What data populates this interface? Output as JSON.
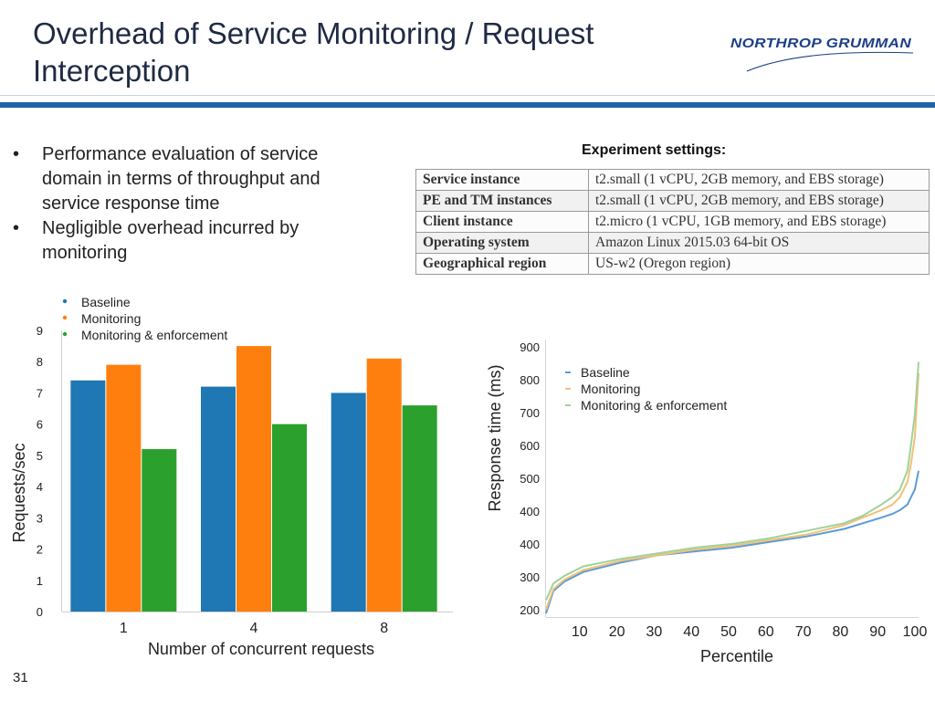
{
  "slide": {
    "title_line1": "Overhead of Service Monitoring / Request",
    "title_line2": "Interception",
    "logo_text": "NORTHROP GRUMMAN",
    "bullets": [
      "Performance evaluation of service domain in terms of throughput and service response time",
      "Negligible overhead incurred by monitoring"
    ],
    "bullet_char": "•",
    "page_number": "31",
    "accent_color": "#1c63a8"
  },
  "experiment": {
    "title": "Experiment settings:",
    "rows": [
      {
        "key": "Service instance",
        "value": "t2.small (1 vCPU, 2GB memory, and EBS storage)"
      },
      {
        "key": "PE and TM instances",
        "value": "t2.small (1 vCPU, 2GB memory, and EBS storage)"
      },
      {
        "key": "Client instance",
        "value": "t2.micro (1 vCPU, 1GB memory, and EBS storage)"
      },
      {
        "key": "Operating system",
        "value": "Amazon Linux 2015.03 64-bit OS"
      },
      {
        "key": "Geographical region",
        "value": "US-w2 (Oregon region)"
      }
    ]
  },
  "chart_data": [
    {
      "type": "bar",
      "categories": [
        "1",
        "4",
        "8"
      ],
      "series": [
        {
          "name": "Baseline",
          "values": [
            7.4,
            7.2,
            7.0
          ],
          "color": "#1f77b4"
        },
        {
          "name": "Monitoring",
          "values": [
            7.9,
            8.5,
            8.1
          ],
          "color": "#ff7f0e"
        },
        {
          "name": "Monitoring & enforcement",
          "values": [
            5.2,
            6.0,
            6.6
          ],
          "color": "#2ca02c"
        }
      ],
      "xlabel": "Number of concurrent requests",
      "ylabel": "Requests/sec",
      "ylim": [
        0,
        9
      ],
      "yticks": [
        "0",
        "1",
        "2",
        "3",
        "4",
        "5",
        "6",
        "7",
        "8",
        "9"
      ],
      "legend": "top-left"
    },
    {
      "type": "line",
      "x": [
        0,
        2,
        5,
        10,
        20,
        30,
        40,
        50,
        60,
        70,
        80,
        85,
        90,
        93,
        95,
        97,
        98,
        99,
        100
      ],
      "series": [
        {
          "name": "Baseline",
          "color": "#5b9bd5",
          "values": [
            190,
            250,
            275,
            300,
            325,
            345,
            355,
            365,
            380,
            395,
            415,
            430,
            445,
            455,
            465,
            480,
            500,
            520,
            570
          ]
        },
        {
          "name": "Monitoring",
          "color": "#f2c078",
          "values": [
            200,
            255,
            280,
            305,
            330,
            345,
            360,
            370,
            385,
            400,
            425,
            445,
            465,
            480,
            500,
            540,
            590,
            660,
            830
          ]
        },
        {
          "name": "Monitoring & enforcement",
          "color": "#9fd29a",
          "values": [
            225,
            270,
            290,
            315,
            335,
            350,
            365,
            375,
            390,
            410,
            430,
            450,
            480,
            500,
            520,
            570,
            640,
            720,
            860
          ]
        }
      ],
      "xlabel": "Percentile",
      "ylabel": "Response time (ms)",
      "xticks": [
        "10",
        "20",
        "30",
        "40",
        "50",
        "60",
        "70",
        "80",
        "90",
        "100"
      ],
      "yticks": [
        "200",
        "300",
        "400",
        "400",
        "500",
        "600",
        "700",
        "800",
        "900"
      ],
      "ylim": [
        200,
        900
      ],
      "legend": "top-left"
    }
  ]
}
